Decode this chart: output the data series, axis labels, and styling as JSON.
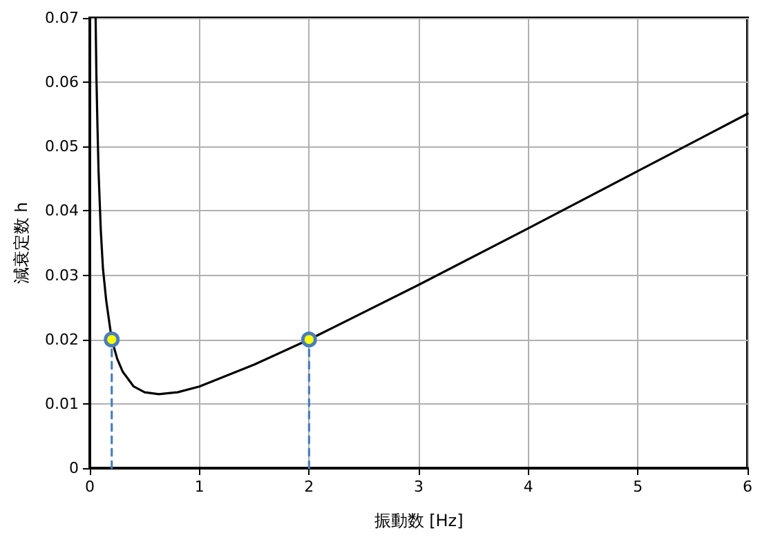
{
  "chart_data": {
    "type": "line",
    "xlabel": "振動数 [Hz]",
    "ylabel": "減衰定数 h",
    "xlim": [
      0,
      6
    ],
    "xticks": [
      0,
      1,
      2,
      3,
      4,
      5,
      6
    ],
    "ylim": [
      0,
      0.07
    ],
    "yticks": [
      0,
      0.01,
      0.02,
      0.03,
      0.04,
      0.05,
      0.06,
      0.07
    ],
    "grid": true,
    "series": [
      {
        "color": "#000000",
        "marker": "none",
        "line_style": "solid",
        "x": [
          0.053,
          0.06,
          0.07,
          0.08,
          0.1,
          0.12,
          0.15,
          0.2,
          0.25,
          0.3,
          0.4,
          0.5,
          0.63,
          0.8,
          1,
          1.5,
          2,
          3,
          4,
          5,
          6
        ],
        "values": [
          0.07,
          0.061,
          0.053,
          0.046,
          0.037,
          0.031,
          0.026,
          0.02,
          0.017,
          0.015,
          0.0127,
          0.0118,
          0.0115,
          0.0118,
          0.0127,
          0.0161,
          0.02,
          0.0285,
          0.0373,
          0.0462,
          0.0551
        ]
      },
      {
        "type": "line",
        "color": "#4a7ebb",
        "marker": "none",
        "line_style": "dashed",
        "x": [
          0.2,
          0.2
        ],
        "values": [
          0,
          0.02
        ]
      },
      {
        "type": "line",
        "color": "#4a7ebb",
        "marker": "none",
        "line_style": "dashed",
        "x": [
          2,
          2
        ],
        "values": [
          0,
          0.02
        ]
      },
      {
        "type": "scatter",
        "color": "#ffff00",
        "marker": "circle",
        "x": [
          0.2,
          2
        ],
        "values": [
          0.02,
          0.02
        ]
      }
    ]
  }
}
